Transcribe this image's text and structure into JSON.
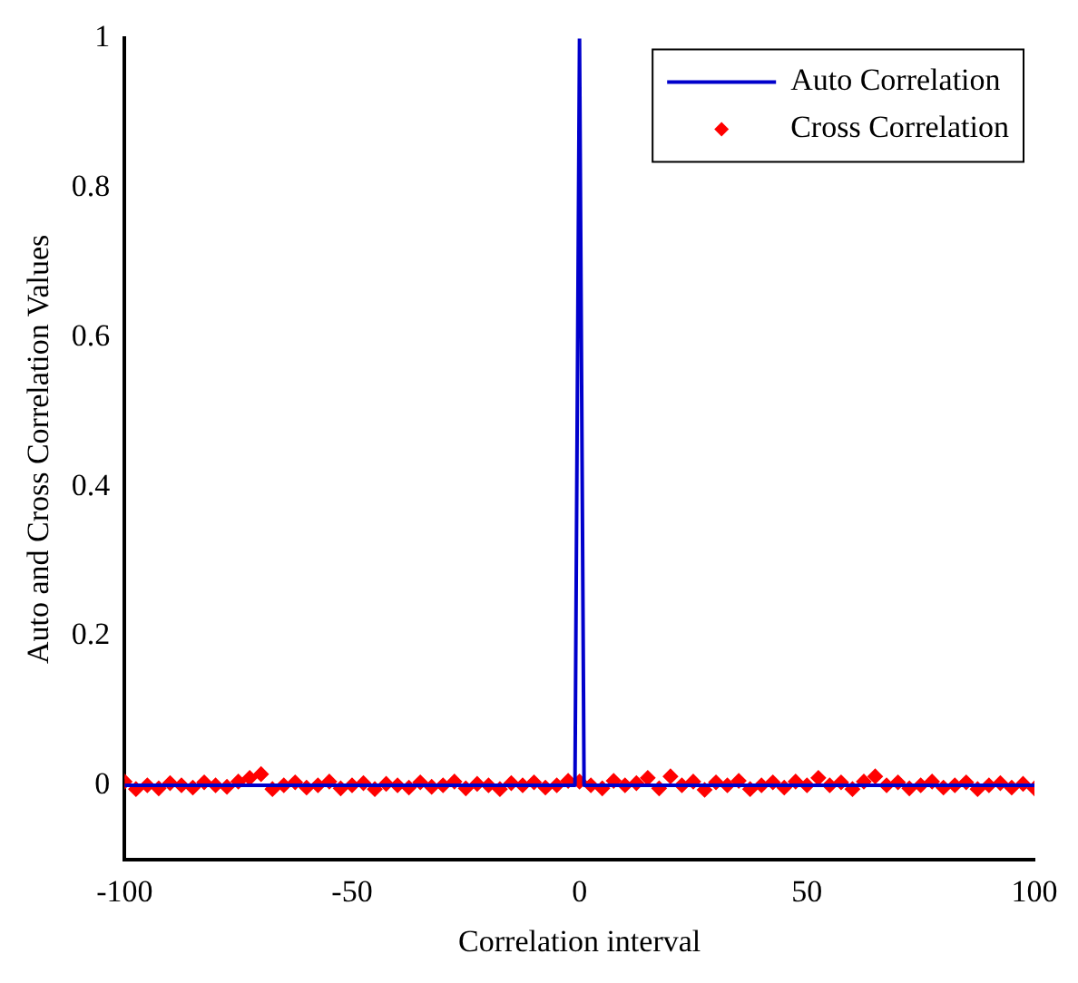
{
  "chart_data": {
    "type": "line",
    "xlabel": "Correlation interval",
    "ylabel": "Auto and Cross Correlation Values",
    "xlim": [
      -100,
      100
    ],
    "xticks": [
      -100,
      -50,
      0,
      50,
      100
    ],
    "ylim": [
      -0.1,
      1
    ],
    "yticks": [
      0,
      0.2,
      0.4,
      0.6,
      0.8,
      1
    ],
    "legend": "top right",
    "grid": false,
    "series": [
      {
        "name": "Auto Correlation",
        "color": "#0000cc",
        "marker": "none",
        "x": [
          -100,
          -1,
          0,
          1,
          100
        ],
        "values": [
          0,
          0,
          1,
          0,
          0
        ]
      },
      {
        "name": "Cross Correlation",
        "type": "scatter",
        "color": "#ff0000",
        "marker": "diamond",
        "x": [
          -100,
          -97.5,
          -95,
          -92.5,
          -90,
          -87.5,
          -85,
          -82.5,
          -80,
          -77.5,
          -75,
          -72.5,
          -70,
          -67.5,
          -65,
          -62.5,
          -60,
          -57.5,
          -55,
          -52.5,
          -50,
          -47.5,
          -45,
          -42.5,
          -40,
          -37.5,
          -35,
          -32.5,
          -30,
          -27.5,
          -25,
          -22.5,
          -20,
          -17.5,
          -15,
          -12.5,
          -10,
          -7.5,
          -5,
          -2.5,
          0,
          2.5,
          5,
          7.5,
          10,
          12.5,
          15,
          17.5,
          20,
          22.5,
          25,
          27.5,
          30,
          32.5,
          35,
          37.5,
          40,
          42.5,
          45,
          47.5,
          50,
          52.5,
          55,
          57.5,
          60,
          62.5,
          65,
          67.5,
          70,
          72.5,
          75,
          77.5,
          80,
          82.5,
          85,
          87.5,
          90,
          92.5,
          95,
          97.5,
          100
        ],
        "values": [
          0.005,
          -0.005,
          0,
          -0.004,
          0.003,
          0,
          -0.003,
          0.004,
          0,
          -0.002,
          0.005,
          0.01,
          0.015,
          -0.005,
          0,
          0.004,
          -0.003,
          0,
          0.005,
          -0.004,
          0,
          0.003,
          -0.005,
          0.002,
          0,
          -0.003,
          0.004,
          -0.002,
          0,
          0.005,
          -0.004,
          0.002,
          0,
          -0.005,
          0.003,
          0,
          0.004,
          -0.003,
          0,
          0.006,
          0.005,
          0,
          -0.004,
          0.006,
          0,
          0.003,
          0.01,
          -0.004,
          0.012,
          0,
          0.005,
          -0.006,
          0.004,
          0,
          0.006,
          -0.005,
          0,
          0.004,
          -0.003,
          0.005,
          0,
          0.01,
          0,
          0.004,
          -0.005,
          0.005,
          0.012,
          0,
          0.004,
          -0.004,
          0,
          0.005,
          -0.003,
          0,
          0.004,
          -0.005,
          0,
          0.003,
          -0.003,
          0.002,
          -0.004
        ]
      }
    ]
  }
}
